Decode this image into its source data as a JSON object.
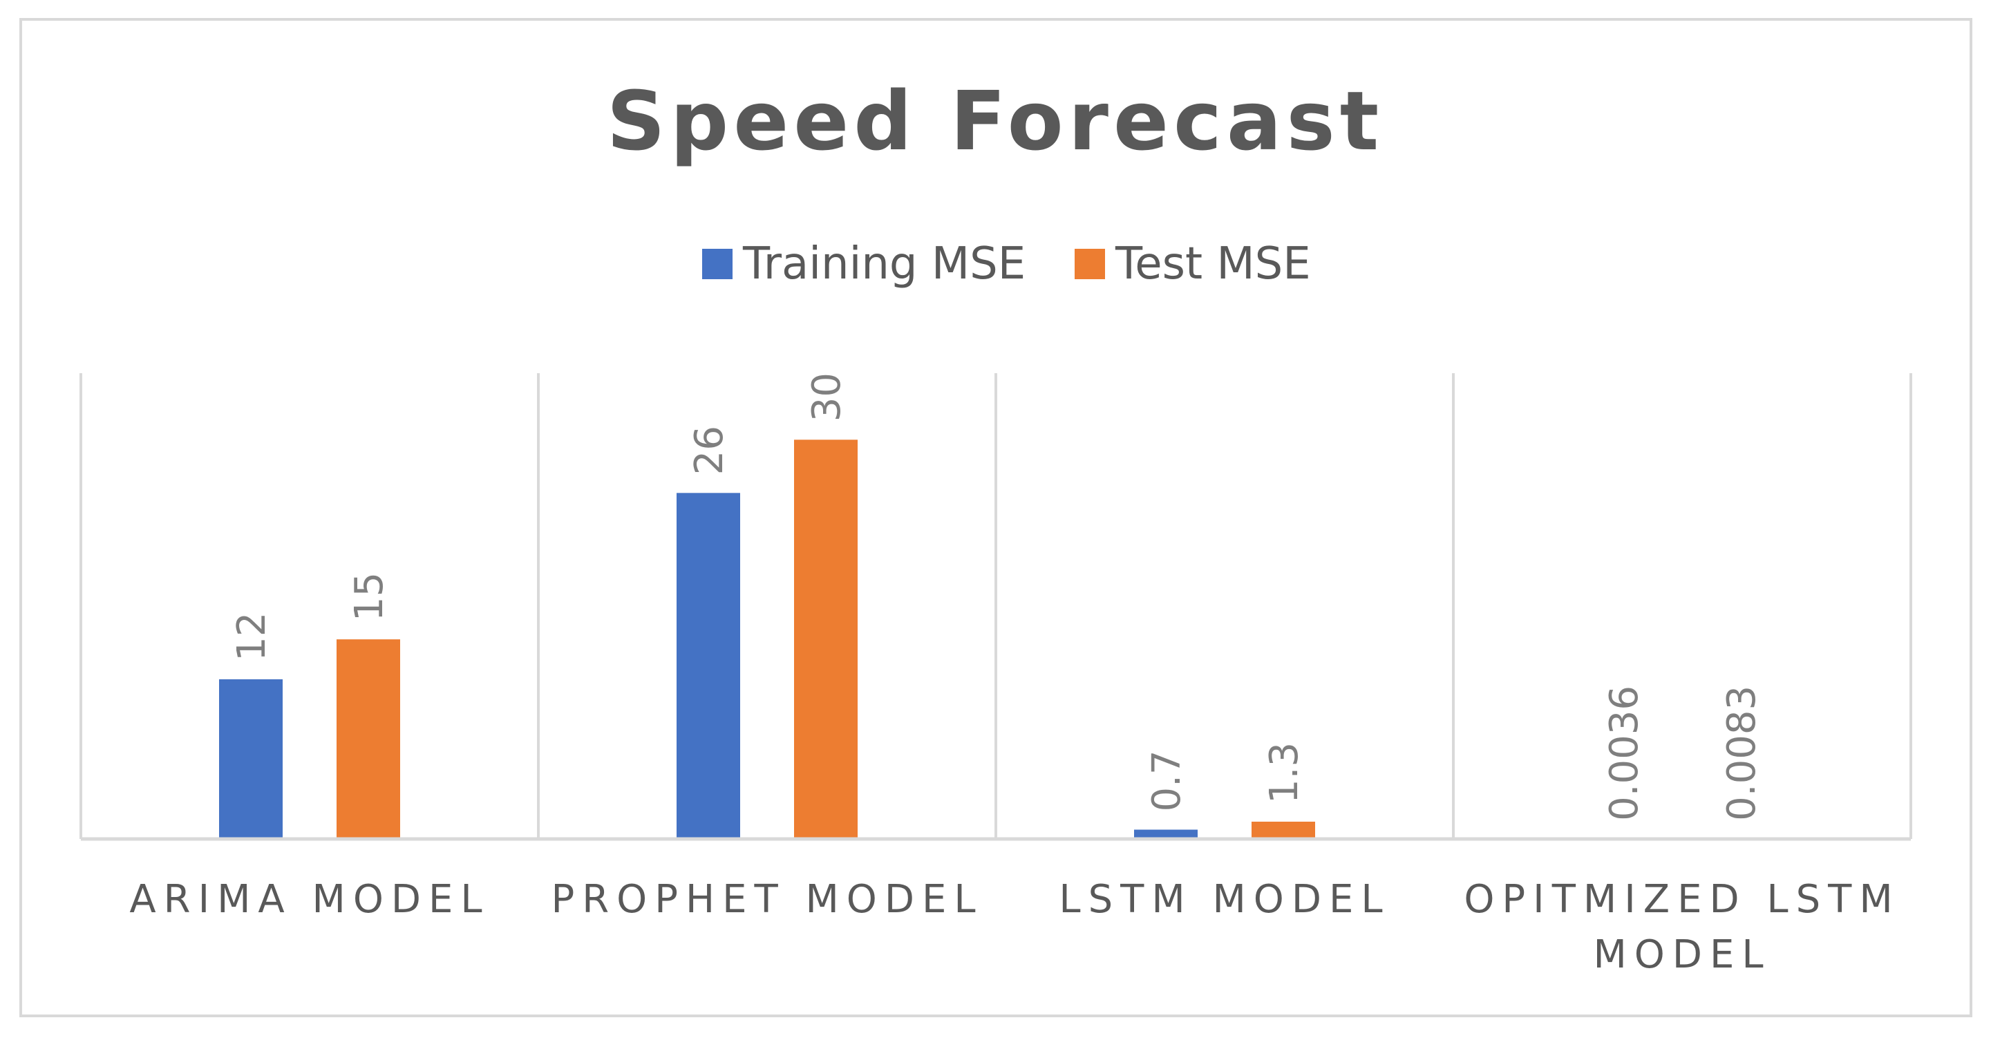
{
  "chart_data": {
    "type": "bar",
    "title": "Speed Forecast",
    "categories": [
      "ARIMA MODEL",
      "PROPHET MODEL",
      "LSTM MODEL",
      "OPITMIZED LSTM MODEL"
    ],
    "series": [
      {
        "name": "Training MSE",
        "color": "#4472c4",
        "values": [
          12,
          26,
          0.7,
          0.0036
        ],
        "labels": [
          "12",
          "26",
          "0.7",
          "0.0036"
        ]
      },
      {
        "name": "Test MSE",
        "color": "#ed7d31",
        "values": [
          15,
          30,
          1.3,
          0.0083
        ],
        "labels": [
          "15",
          "30",
          "1.3",
          "0.0083"
        ]
      }
    ],
    "xlabel": "",
    "ylabel": "",
    "ylim": [
      0,
      35
    ],
    "legend": "top",
    "grid": "vertical category separators",
    "data_labels": "rotated, above bars"
  }
}
